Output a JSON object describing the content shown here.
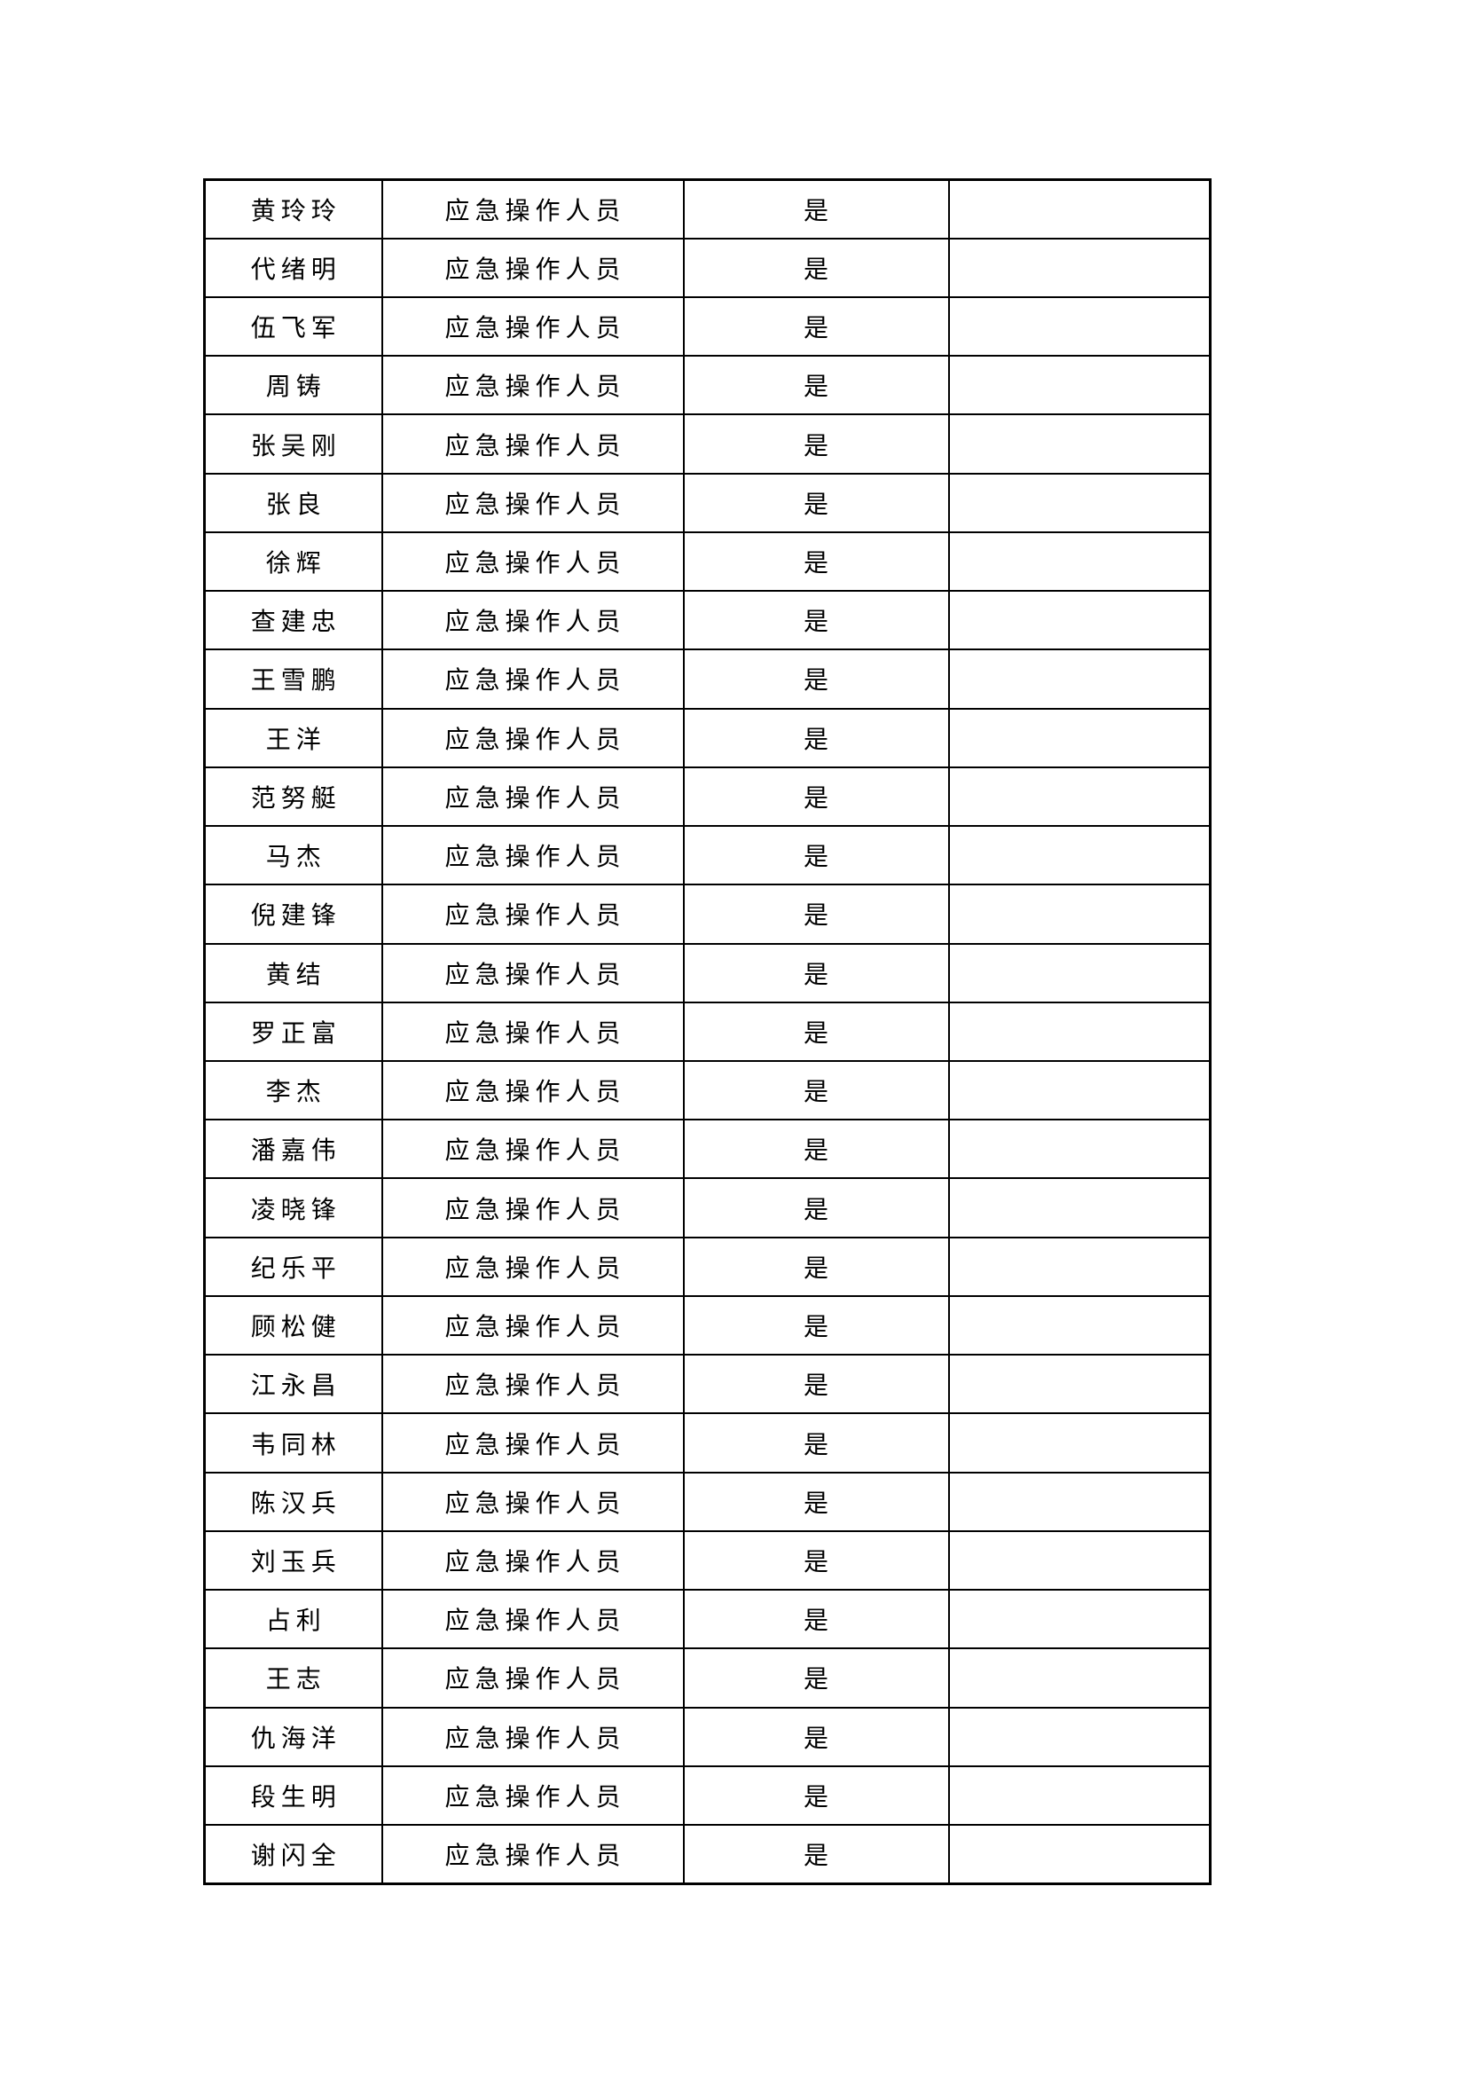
{
  "document": {
    "type": "table-continuation-page",
    "colors": {
      "background": "#ffffff",
      "border": "#000000",
      "text": "#000000"
    },
    "table": {
      "columns": [
        "name",
        "role",
        "status",
        "remark"
      ],
      "rows": [
        {
          "name": "黄玲玲",
          "role": "应急操作人员",
          "status": "是",
          "remark": ""
        },
        {
          "name": "代绪明",
          "role": "应急操作人员",
          "status": "是",
          "remark": ""
        },
        {
          "name": "伍飞军",
          "role": "应急操作人员",
          "status": "是",
          "remark": ""
        },
        {
          "name": "周铸",
          "role": "应急操作人员",
          "status": "是",
          "remark": ""
        },
        {
          "name": "张吴刚",
          "role": "应急操作人员",
          "status": "是",
          "remark": ""
        },
        {
          "name": "张良",
          "role": "应急操作人员",
          "status": "是",
          "remark": ""
        },
        {
          "name": "徐辉",
          "role": "应急操作人员",
          "status": "是",
          "remark": ""
        },
        {
          "name": "查建忠",
          "role": "应急操作人员",
          "status": "是",
          "remark": ""
        },
        {
          "name": "王雪鹏",
          "role": "应急操作人员",
          "status": "是",
          "remark": ""
        },
        {
          "name": "王洋",
          "role": "应急操作人员",
          "status": "是",
          "remark": ""
        },
        {
          "name": "范努艇",
          "role": "应急操作人员",
          "status": "是",
          "remark": ""
        },
        {
          "name": "马杰",
          "role": "应急操作人员",
          "status": "是",
          "remark": ""
        },
        {
          "name": "倪建锋",
          "role": "应急操作人员",
          "status": "是",
          "remark": ""
        },
        {
          "name": "黄结",
          "role": "应急操作人员",
          "status": "是",
          "remark": ""
        },
        {
          "name": "罗正富",
          "role": "应急操作人员",
          "status": "是",
          "remark": ""
        },
        {
          "name": "李杰",
          "role": "应急操作人员",
          "status": "是",
          "remark": ""
        },
        {
          "name": "潘嘉伟",
          "role": "应急操作人员",
          "status": "是",
          "remark": ""
        },
        {
          "name": "凌晓锋",
          "role": "应急操作人员",
          "status": "是",
          "remark": ""
        },
        {
          "name": "纪乐平",
          "role": "应急操作人员",
          "status": "是",
          "remark": ""
        },
        {
          "name": "顾松健",
          "role": "应急操作人员",
          "status": "是",
          "remark": ""
        },
        {
          "name": "江永昌",
          "role": "应急操作人员",
          "status": "是",
          "remark": ""
        },
        {
          "name": "韦同林",
          "role": "应急操作人员",
          "status": "是",
          "remark": ""
        },
        {
          "name": "陈汉兵",
          "role": "应急操作人员",
          "status": "是",
          "remark": ""
        },
        {
          "name": "刘玉兵",
          "role": "应急操作人员",
          "status": "是",
          "remark": ""
        },
        {
          "name": "占利",
          "role": "应急操作人员",
          "status": "是",
          "remark": ""
        },
        {
          "name": "王志",
          "role": "应急操作人员",
          "status": "是",
          "remark": ""
        },
        {
          "name": "仇海洋",
          "role": "应急操作人员",
          "status": "是",
          "remark": ""
        },
        {
          "name": "段生明",
          "role": "应急操作人员",
          "status": "是",
          "remark": ""
        },
        {
          "name": "谢闪全",
          "role": "应急操作人员",
          "status": "是",
          "remark": ""
        }
      ]
    }
  }
}
